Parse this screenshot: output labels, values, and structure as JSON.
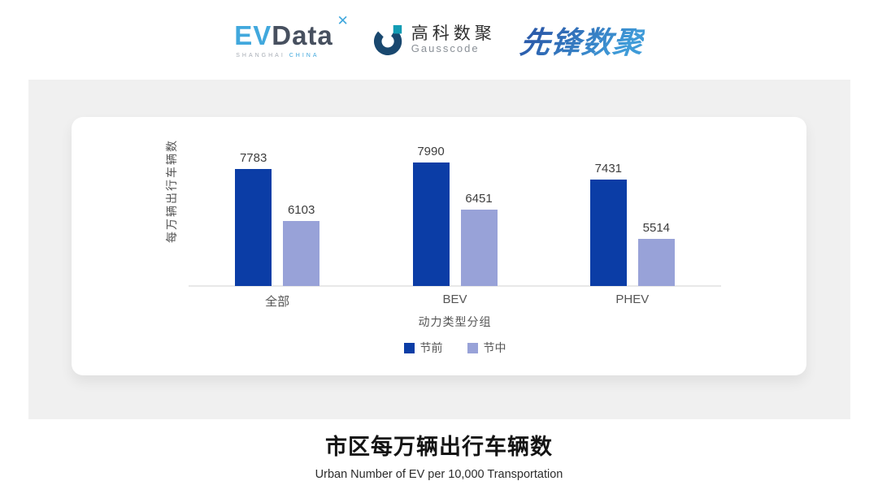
{
  "header": {
    "evdata": {
      "ev": "EV",
      "data": "Data",
      "spark": "✕",
      "sub1": "SHANGHAI",
      "sub2": "CHINA"
    },
    "gausscode": {
      "cn": "高科数聚",
      "en": "Gausscode",
      "mark_navy": "#19486f",
      "mark_teal": "#129cb4"
    },
    "xianfeng": {
      "text": "先锋数聚"
    }
  },
  "chart_data": {
    "type": "bar",
    "categories": [
      "全部",
      "BEV",
      "PHEV"
    ],
    "series": [
      {
        "name": "节前",
        "color": "#0b3da6",
        "values": [
          7783,
          7990,
          7431
        ]
      },
      {
        "name": "节中",
        "color": "#98a2d8",
        "values": [
          6103,
          6451,
          5514
        ]
      }
    ],
    "xlabel": "动力类型分组",
    "ylabel": "每万辆出行车辆数",
    "ylim": [
      4000,
      8400
    ],
    "grid": false,
    "legend_position": "bottom",
    "value_labels": true
  },
  "footer": {
    "title": "市区每万辆出行车辆数",
    "subtitle": "Urban Number of EV per 10,000 Transportation"
  }
}
